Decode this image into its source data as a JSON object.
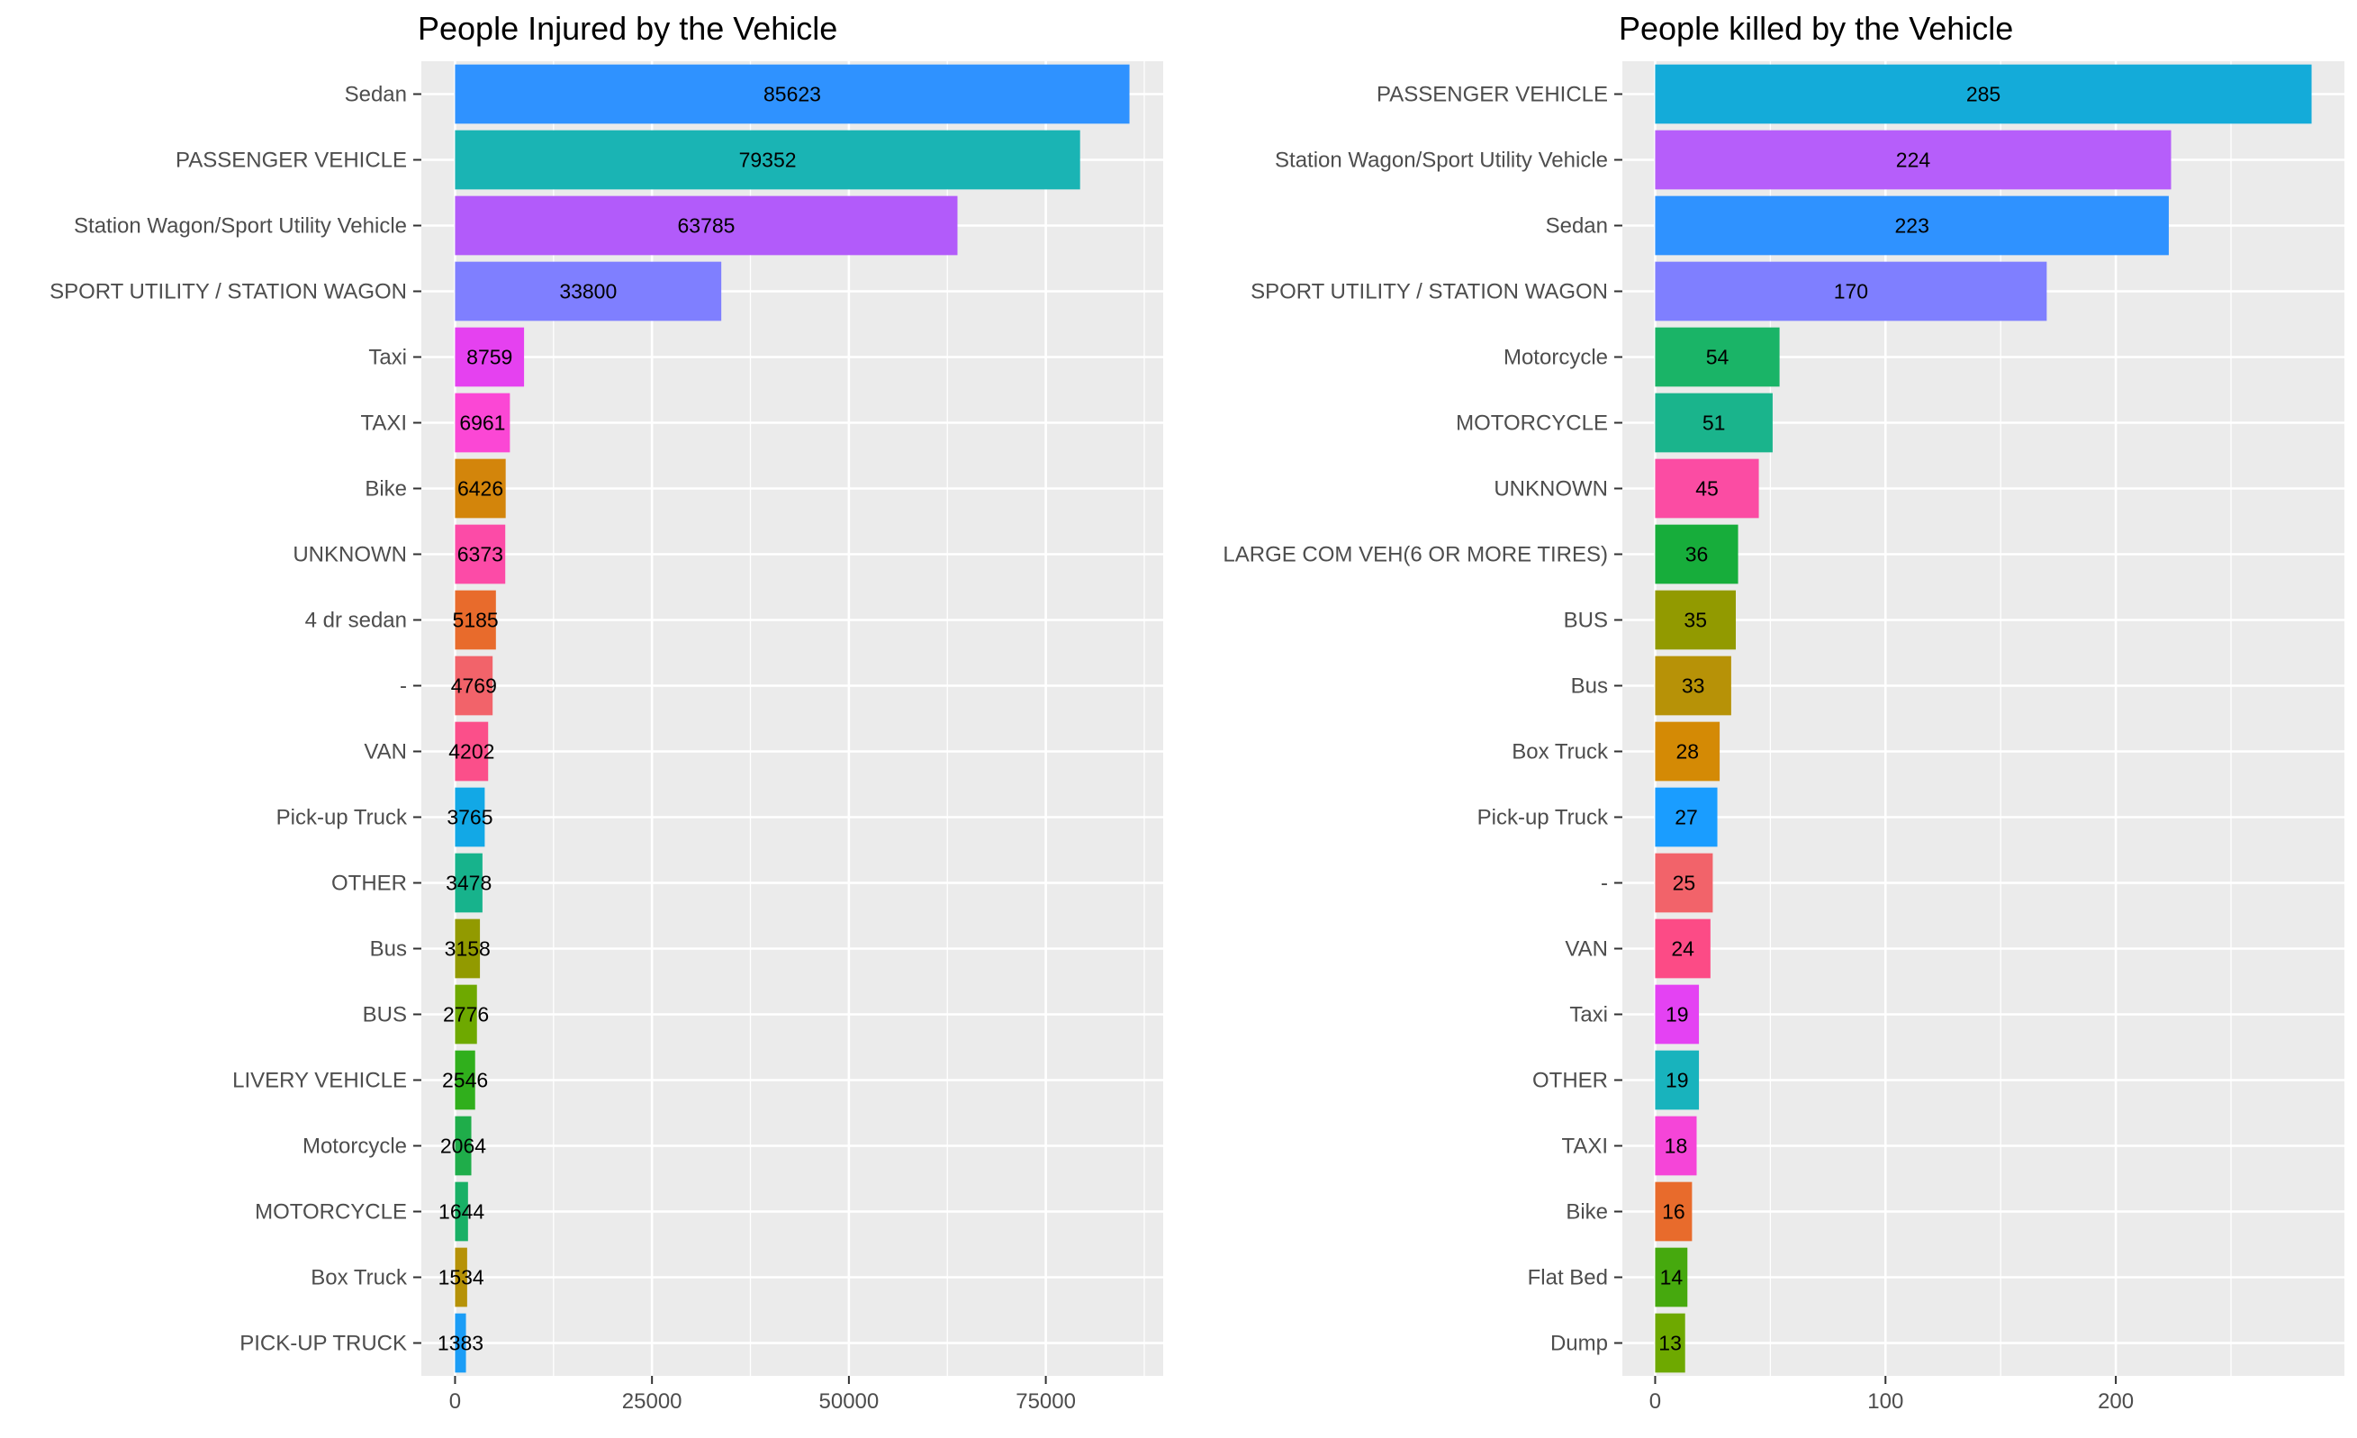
{
  "chart_data": [
    {
      "type": "bar",
      "orientation": "horizontal",
      "title": "People Injured by the Vehicle",
      "xlabel": "",
      "ylabel": "",
      "categories": [
        "Sedan",
        "PASSENGER VEHICLE",
        "Station Wagon/Sport Utility Vehicle",
        "SPORT UTILITY / STATION WAGON",
        "Taxi",
        "TAXI",
        "Bike",
        "UNKNOWN",
        "4 dr sedan",
        "-",
        "VAN",
        "Pick-up Truck",
        "OTHER",
        "Bus",
        "BUS",
        "LIVERY VEHICLE",
        "Motorcycle",
        "MOTORCYCLE",
        "Box Truck",
        "PICK-UP TRUCK"
      ],
      "values": [
        85623,
        79352,
        63785,
        33800,
        8759,
        6961,
        6426,
        6373,
        5185,
        4769,
        4202,
        3765,
        3478,
        3158,
        2776,
        2546,
        2064,
        1644,
        1534,
        1383
      ],
      "value_labels": [
        "85623",
        "79352",
        "63785",
        "33800",
        "8759",
        "6961",
        "6426",
        "6373",
        "5185",
        "4769",
        "4202",
        "3765",
        "3478",
        "3158",
        "2776",
        "2546",
        "2064",
        "1644",
        "1534",
        "1383"
      ],
      "colors": [
        "#2f92ff",
        "#1ab4b4",
        "#b25bfa",
        "#7f7fff",
        "#e541f0",
        "#fb47d5",
        "#d3850b",
        "#fc4ba7",
        "#e86b2c",
        "#f2636a",
        "#fb4f8a",
        "#12a8e6",
        "#17b38c",
        "#929a00",
        "#6ea900",
        "#30af1c",
        "#1fad4a",
        "#19b066",
        "#b69208",
        "#1b9df6"
      ],
      "xticks": [
        0,
        25000,
        50000,
        75000
      ],
      "xtick_labels": [
        "0",
        "25000",
        "50000",
        "75000"
      ],
      "xlim": [
        -4281,
        89904
      ],
      "grid": true,
      "legend": "none"
    },
    {
      "type": "bar",
      "orientation": "horizontal",
      "title": "People killed by the Vehicle",
      "xlabel": "",
      "ylabel": "",
      "categories": [
        "PASSENGER VEHICLE",
        "Station Wagon/Sport Utility Vehicle",
        "Sedan",
        "SPORT UTILITY / STATION WAGON",
        "Motorcycle",
        "MOTORCYCLE",
        "UNKNOWN",
        "LARGE COM VEH(6 OR MORE TIRES)",
        "BUS",
        "Bus",
        "Box Truck",
        "Pick-up Truck",
        "-",
        "VAN",
        "Taxi",
        "OTHER",
        "TAXI",
        "Bike",
        "Flat Bed",
        "Dump"
      ],
      "values": [
        285,
        224,
        223,
        170,
        54,
        51,
        45,
        36,
        35,
        33,
        28,
        27,
        25,
        24,
        19,
        19,
        18,
        16,
        14,
        13
      ],
      "value_labels": [
        "285",
        "224",
        "223",
        "170",
        "54",
        "51",
        "45",
        "36",
        "35",
        "33",
        "28",
        "27",
        "25",
        "24",
        "19",
        "19",
        "18",
        "16",
        "14",
        "13"
      ],
      "colors": [
        "#14abd9",
        "#b65efa",
        "#2f92ff",
        "#7f7fff",
        "#1ab467",
        "#1ab48c",
        "#fb4ca3",
        "#17ad3b",
        "#929a00",
        "#b79207",
        "#d48a05",
        "#1a9dff",
        "#f2636a",
        "#fc4b86",
        "#e442f3",
        "#18b3bd",
        "#f545d8",
        "#e86b2c",
        "#46a90e",
        "#6ea900"
      ],
      "xticks": [
        0,
        100,
        200
      ],
      "xtick_labels": [
        "0",
        "100",
        "200"
      ],
      "xlim": [
        -14.25,
        299.25
      ],
      "grid": true,
      "legend": "none"
    }
  ]
}
